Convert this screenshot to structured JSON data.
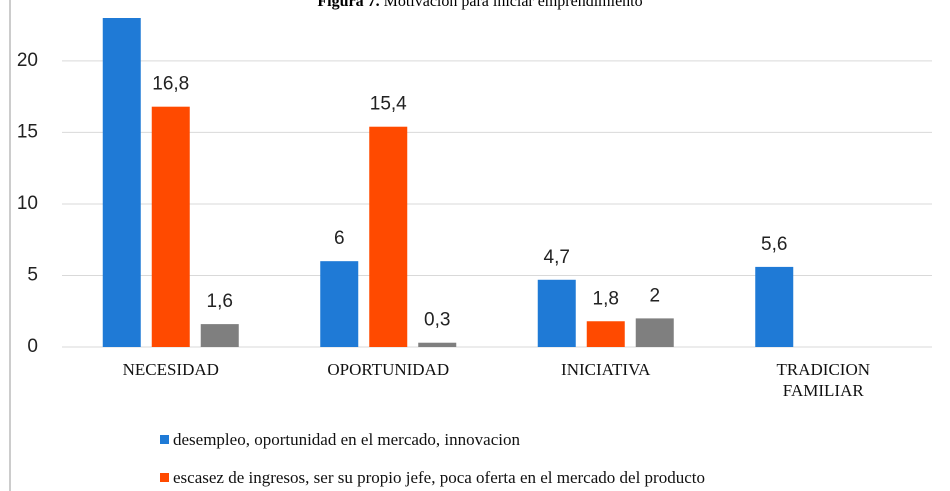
{
  "chart_data": {
    "type": "bar",
    "title_label": "Figura 7.",
    "title": "Motivacion para iniciar emprendimiento",
    "categories": [
      "NECESIDAD",
      "OPORTUNIDAD",
      "INICIATIVA",
      "TRADICION FAMILIAR"
    ],
    "series": [
      {
        "name": "desempleo, oportunidad en el mercado, innovacion",
        "color": "#1f7ad6",
        "values": [
          23,
          6,
          4.7,
          5.6
        ],
        "value_labels": [
          null,
          "6",
          "4,7",
          "5,6"
        ]
      },
      {
        "name": "escasez de ingresos, ser su propio jefe, poca oferta en el mercado del producto",
        "color": "#ff4a00",
        "values": [
          16.8,
          15.4,
          1.8,
          null
        ],
        "value_labels": [
          "16,8",
          "15,4",
          "1,8",
          null
        ]
      },
      {
        "color": "#7f7f7f",
        "values": [
          1.6,
          0.3,
          2,
          null
        ],
        "value_labels": [
          "1,6",
          "0,3",
          "2",
          null
        ]
      }
    ],
    "ylim": [
      0,
      23
    ],
    "yticks": [
      0,
      5,
      10,
      15,
      20
    ],
    "grid": true
  }
}
